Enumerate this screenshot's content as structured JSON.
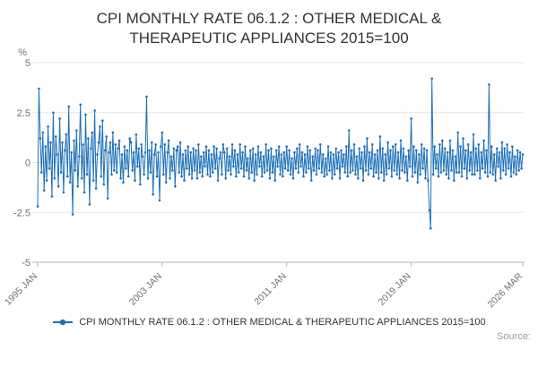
{
  "chart": {
    "title": "CPI MONTHLY RATE 06.1.2 : OTHER MEDICAL & THERAPEUTIC APPLIANCES 2015=100",
    "y_unit": "%",
    "legend_label": "CPI MONTHLY RATE 06.1.2 : OTHER MEDICAL & THERAPEUTIC APPLIANCES 2015=100",
    "source_label": "Source:",
    "line_color": "#1d70b8"
  },
  "chart_data": {
    "type": "line",
    "title": "CPI MONTHLY RATE 06.1.2 : OTHER MEDICAL & THERAPEUTIC APPLIANCES 2015=100",
    "xlabel": "",
    "ylabel": "%",
    "ylim": [
      -5,
      5
    ],
    "yticks": [
      5,
      2.5,
      0,
      -2.5,
      -5
    ],
    "grid": "horizontal",
    "legend_position": "bottom",
    "x_start": "1995 JAN",
    "x_end": "2026 MAR",
    "frequency": "monthly",
    "xticks": [
      {
        "label": "1995 JAN",
        "month_index": 0
      },
      {
        "label": "2003 JAN",
        "month_index": 96
      },
      {
        "label": "2011 JAN",
        "month_index": 192
      },
      {
        "label": "2019 JAN",
        "month_index": 288
      },
      {
        "label": "2026 MAR",
        "month_index": 374
      }
    ],
    "series": [
      {
        "name": "CPI MONTHLY RATE 06.1.2 : OTHER MEDICAL & THERAPEUTIC APPLIANCES 2015=100",
        "color": "#1d70b8",
        "values": [
          -2.2,
          3.7,
          1.2,
          -0.5,
          1.5,
          -1.4,
          0.8,
          -0.9,
          1.8,
          -0.3,
          1.0,
          -1.7,
          2.5,
          -0.8,
          1.3,
          0.4,
          -1.2,
          2.2,
          -0.5,
          1.0,
          -1.5,
          0.6,
          1.4,
          -0.7,
          2.8,
          -1.0,
          0.5,
          -2.6,
          1.1,
          -0.4,
          1.6,
          -1.2,
          0.3,
          2.9,
          -0.8,
          0.9,
          -1.5,
          2.4,
          -0.6,
          1.2,
          -2.1,
          0.7,
          1.5,
          -0.9,
          2.6,
          -1.3,
          0.4,
          1.0,
          1.8,
          -0.7,
          2.1,
          -1.1,
          0.6,
          1.3,
          -1.8,
          0.5,
          1.0,
          -0.6,
          1.5,
          -0.4,
          0.9,
          -0.5,
          0.7,
          1.1,
          -0.8,
          0.4,
          -1.0,
          0.8,
          -0.3,
          0.6,
          -0.7,
          1.2,
          1.0,
          -0.4,
          0.5,
          -0.9,
          1.4,
          -0.2,
          0.7,
          -1.1,
          0.9,
          0.3,
          -0.6,
          0.5,
          3.3,
          -0.8,
          0.6,
          -0.5,
          1.0,
          -1.6,
          0.4,
          0.9,
          -0.7,
          0.5,
          -1.9,
          0.8,
          1.5,
          -0.6,
          0.9,
          -1.0,
          0.5,
          1.1,
          -0.8,
          0.3,
          -0.4,
          0.7,
          -1.2,
          0.6,
          0.8,
          -0.5,
          1.0,
          -0.7,
          0.4,
          -0.9,
          0.6,
          -0.3,
          0.8,
          -0.6,
          0.5,
          -0.8,
          0.7,
          -0.4,
          0.6,
          -0.8,
          0.9,
          -0.5,
          0.3,
          -0.7,
          0.5,
          -0.2,
          0.8,
          -0.6,
          0.6,
          -0.7,
          0.4,
          -0.5,
          0.8,
          -0.3,
          0.7,
          -0.9,
          0.2,
          0.5,
          -0.6,
          0.9,
          0.5,
          -0.8,
          0.7,
          -0.4,
          0.3,
          -0.6,
          0.9,
          -0.2,
          0.6,
          -0.7,
          0.4,
          -0.5,
          0.9,
          -0.3,
          0.5,
          -0.7,
          0.8,
          -0.4,
          0.2,
          -0.8,
          0.6,
          -0.5,
          0.7,
          -0.9,
          0.4,
          -0.6,
          0.8,
          -0.2,
          0.5,
          -0.7,
          0.3,
          -0.5,
          0.9,
          -0.4,
          0.6,
          -0.8,
          0.7,
          -0.5,
          0.3,
          -0.9,
          0.6,
          -0.2,
          0.8,
          -0.6,
          0.4,
          -0.7,
          0.5,
          -0.3,
          0.8,
          -0.4,
          0.6,
          -0.6,
          0.2,
          -0.8,
          0.5,
          -0.3,
          0.7,
          -0.5,
          0.9,
          -0.2,
          0.5,
          -0.7,
          0.4,
          -0.5,
          0.8,
          -0.3,
          0.6,
          -0.9,
          0.3,
          -0.4,
          0.7,
          -0.6,
          0.6,
          -0.3,
          0.9,
          -0.5,
          0.4,
          -0.7,
          0.2,
          -0.6,
          0.8,
          -0.4,
          0.5,
          -0.8,
          0.4,
          -0.6,
          0.7,
          -0.3,
          0.5,
          -0.8,
          0.6,
          -0.2,
          0.4,
          -0.5,
          0.8,
          -0.7,
          1.6,
          -0.5,
          0.6,
          -0.4,
          0.9,
          -0.6,
          0.3,
          -0.8,
          0.7,
          -0.3,
          0.5,
          -0.9,
          0.8,
          -0.4,
          1.2,
          -0.6,
          0.5,
          -0.3,
          0.9,
          -0.7,
          0.4,
          -0.5,
          0.6,
          -0.8,
          1.3,
          -0.5,
          0.7,
          -0.9,
          0.4,
          -0.6,
          1.0,
          -0.3,
          0.6,
          -0.7,
          0.8,
          -0.4,
          0.9,
          -0.6,
          0.5,
          -0.8,
          1.1,
          -0.4,
          0.7,
          -0.5,
          0.3,
          -0.9,
          0.6,
          -0.2,
          2.2,
          -0.7,
          0.8,
          -0.5,
          0.6,
          -1.0,
          0.4,
          -0.6,
          0.9,
          -0.3,
          0.7,
          -0.8,
          0.6,
          -0.9,
          -2.4,
          -3.3,
          4.2,
          -0.6,
          0.8,
          -0.3,
          0.4,
          -0.7,
          0.9,
          -0.5,
          1.1,
          -0.4,
          0.7,
          -0.6,
          0.5,
          -0.8,
          1.1,
          -0.4,
          0.6,
          -0.9,
          0.3,
          -0.5,
          1.5,
          -0.5,
          0.8,
          -0.7,
          1.2,
          -0.3,
          0.6,
          -0.8,
          0.9,
          -0.4,
          0.5,
          -0.6,
          1.4,
          -0.6,
          0.7,
          -0.4,
          0.9,
          -0.8,
          0.5,
          -0.3,
          1.1,
          -0.5,
          0.6,
          -0.7,
          3.9,
          -0.5,
          0.8,
          -0.6,
          0.4,
          -0.9,
          0.7,
          -0.2,
          0.5,
          -0.8,
          1.0,
          -0.4,
          0.7,
          -0.6,
          0.9,
          -0.3,
          0.5,
          -0.7,
          0.8,
          -0.5,
          0.3,
          -0.6,
          0.6,
          -0.4,
          0.5,
          -0.3,
          0.4
        ]
      }
    ]
  }
}
